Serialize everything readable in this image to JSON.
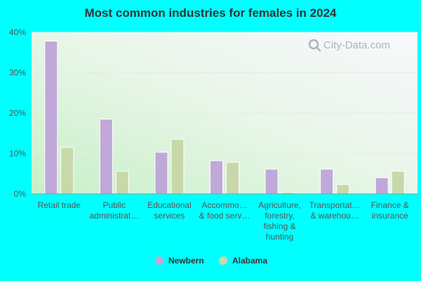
{
  "chart_data": {
    "type": "bar",
    "title": "Most common industries for females in 2024",
    "categories": [
      [
        "Retail trade"
      ],
      [
        "Public",
        "administrat…"
      ],
      [
        "Educational",
        "services"
      ],
      [
        "Accommo…",
        "& food serv…"
      ],
      [
        "Agriculture,",
        "forestry,",
        "fishing &",
        "hunting"
      ],
      [
        "Transportat…",
        "& warehou…"
      ],
      [
        "Finance &",
        "insurance"
      ]
    ],
    "series": [
      {
        "name": "Newbern",
        "color": "#c0a8d8",
        "values": [
          37.8,
          18.5,
          10.3,
          8.2,
          6.1,
          6.1,
          4.0
        ]
      },
      {
        "name": "Alabama",
        "color": "#c8d8a8",
        "values": [
          11.5,
          5.6,
          13.5,
          7.8,
          0.4,
          2.3,
          5.6
        ]
      }
    ],
    "yticks": [
      "0%",
      "10%",
      "20%",
      "30%",
      "40%"
    ],
    "ylim": [
      0,
      40
    ],
    "legend_position": "bottom",
    "grid": true
  },
  "watermark": "City-Data.com"
}
